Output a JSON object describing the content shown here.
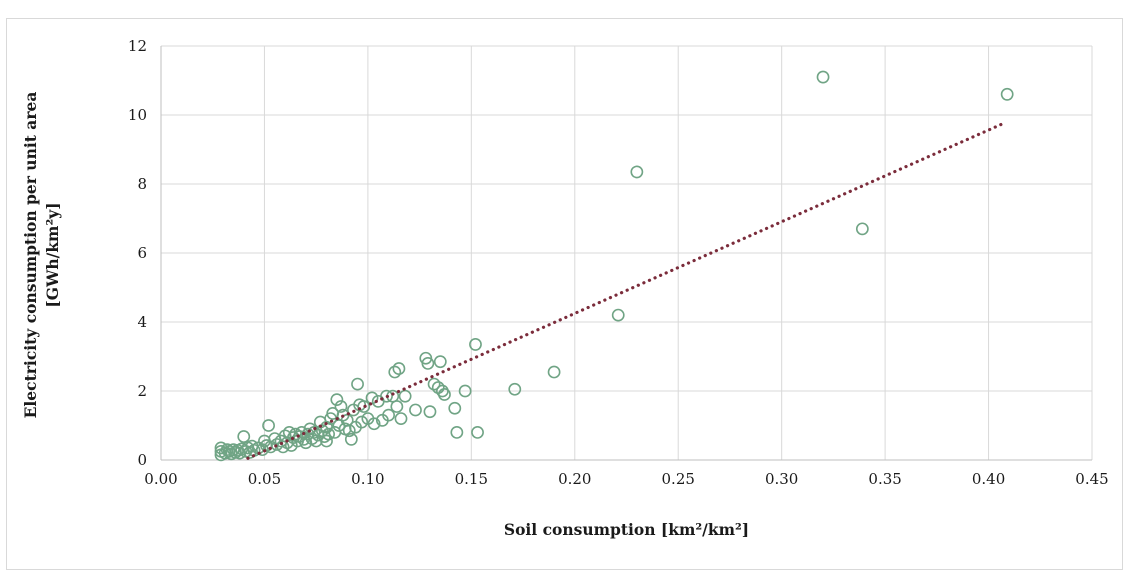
{
  "chart_data": {
    "type": "scatter",
    "xlabel": "Soil consumption [km²/km²]",
    "ylabel_lines": [
      "Electricity consumption per unit area",
      "[GWh/km²y]"
    ],
    "xlim": [
      0,
      0.45
    ],
    "ylim": [
      0,
      12
    ],
    "x_ticks": [
      "0.00",
      "0.05",
      "0.10",
      "0.15",
      "0.20",
      "0.25",
      "0.30",
      "0.35",
      "0.40",
      "0.45"
    ],
    "y_ticks": [
      "0",
      "2",
      "4",
      "6",
      "8",
      "10",
      "12"
    ],
    "grid": true,
    "legend": "none",
    "colors": {
      "points": "#70a485",
      "trendline": "#7b2c3b"
    },
    "trendline": {
      "style": "dotted",
      "x": [
        0.042,
        0.407
      ],
      "y": [
        0.05,
        9.75
      ]
    },
    "points": [
      {
        "x": 0.029,
        "y": 0.15
      },
      {
        "x": 0.029,
        "y": 0.25
      },
      {
        "x": 0.029,
        "y": 0.35
      },
      {
        "x": 0.031,
        "y": 0.2
      },
      {
        "x": 0.032,
        "y": 0.3
      },
      {
        "x": 0.033,
        "y": 0.25
      },
      {
        "x": 0.034,
        "y": 0.18
      },
      {
        "x": 0.035,
        "y": 0.3
      },
      {
        "x": 0.036,
        "y": 0.22
      },
      {
        "x": 0.037,
        "y": 0.28
      },
      {
        "x": 0.038,
        "y": 0.2
      },
      {
        "x": 0.039,
        "y": 0.32
      },
      {
        "x": 0.04,
        "y": 0.68
      },
      {
        "x": 0.041,
        "y": 0.25
      },
      {
        "x": 0.042,
        "y": 0.35
      },
      {
        "x": 0.043,
        "y": 0.22
      },
      {
        "x": 0.044,
        "y": 0.4
      },
      {
        "x": 0.045,
        "y": 0.28
      },
      {
        "x": 0.047,
        "y": 0.35
      },
      {
        "x": 0.049,
        "y": 0.3
      },
      {
        "x": 0.05,
        "y": 0.55
      },
      {
        "x": 0.051,
        "y": 0.42
      },
      {
        "x": 0.052,
        "y": 1.0
      },
      {
        "x": 0.053,
        "y": 0.38
      },
      {
        "x": 0.055,
        "y": 0.62
      },
      {
        "x": 0.056,
        "y": 0.45
      },
      {
        "x": 0.058,
        "y": 0.55
      },
      {
        "x": 0.059,
        "y": 0.38
      },
      {
        "x": 0.06,
        "y": 0.7
      },
      {
        "x": 0.061,
        "y": 0.5
      },
      {
        "x": 0.062,
        "y": 0.8
      },
      {
        "x": 0.063,
        "y": 0.42
      },
      {
        "x": 0.064,
        "y": 0.65
      },
      {
        "x": 0.065,
        "y": 0.75
      },
      {
        "x": 0.066,
        "y": 0.55
      },
      {
        "x": 0.067,
        "y": 0.68
      },
      {
        "x": 0.068,
        "y": 0.8
      },
      {
        "x": 0.069,
        "y": 0.6
      },
      {
        "x": 0.07,
        "y": 0.5
      },
      {
        "x": 0.071,
        "y": 0.75
      },
      {
        "x": 0.072,
        "y": 0.9
      },
      {
        "x": 0.073,
        "y": 0.62
      },
      {
        "x": 0.074,
        "y": 0.8
      },
      {
        "x": 0.075,
        "y": 0.55
      },
      {
        "x": 0.076,
        "y": 0.72
      },
      {
        "x": 0.077,
        "y": 1.1
      },
      {
        "x": 0.078,
        "y": 0.85
      },
      {
        "x": 0.079,
        "y": 0.68
      },
      {
        "x": 0.08,
        "y": 0.95
      },
      {
        "x": 0.08,
        "y": 0.55
      },
      {
        "x": 0.081,
        "y": 0.75
      },
      {
        "x": 0.082,
        "y": 1.2
      },
      {
        "x": 0.083,
        "y": 1.35
      },
      {
        "x": 0.084,
        "y": 0.8
      },
      {
        "x": 0.085,
        "y": 1.75
      },
      {
        "x": 0.086,
        "y": 1.0
      },
      {
        "x": 0.087,
        "y": 1.55
      },
      {
        "x": 0.088,
        "y": 1.3
      },
      {
        "x": 0.089,
        "y": 0.9
      },
      {
        "x": 0.09,
        "y": 1.15
      },
      {
        "x": 0.091,
        "y": 0.85
      },
      {
        "x": 0.092,
        "y": 0.6
      },
      {
        "x": 0.093,
        "y": 1.45
      },
      {
        "x": 0.094,
        "y": 0.95
      },
      {
        "x": 0.095,
        "y": 2.2
      },
      {
        "x": 0.096,
        "y": 1.6
      },
      {
        "x": 0.097,
        "y": 1.1
      },
      {
        "x": 0.098,
        "y": 1.55
      },
      {
        "x": 0.1,
        "y": 1.2
      },
      {
        "x": 0.102,
        "y": 1.8
      },
      {
        "x": 0.103,
        "y": 1.05
      },
      {
        "x": 0.105,
        "y": 1.7
      },
      {
        "x": 0.107,
        "y": 1.15
      },
      {
        "x": 0.109,
        "y": 1.85
      },
      {
        "x": 0.11,
        "y": 1.3
      },
      {
        "x": 0.112,
        "y": 1.85
      },
      {
        "x": 0.113,
        "y": 2.55
      },
      {
        "x": 0.114,
        "y": 1.55
      },
      {
        "x": 0.115,
        "y": 2.65
      },
      {
        "x": 0.116,
        "y": 1.2
      },
      {
        "x": 0.118,
        "y": 1.85
      },
      {
        "x": 0.123,
        "y": 1.45
      },
      {
        "x": 0.128,
        "y": 2.95
      },
      {
        "x": 0.129,
        "y": 2.8
      },
      {
        "x": 0.13,
        "y": 1.4
      },
      {
        "x": 0.132,
        "y": 2.2
      },
      {
        "x": 0.134,
        "y": 2.1
      },
      {
        "x": 0.135,
        "y": 2.85
      },
      {
        "x": 0.136,
        "y": 2.0
      },
      {
        "x": 0.137,
        "y": 1.9
      },
      {
        "x": 0.142,
        "y": 1.5
      },
      {
        "x": 0.143,
        "y": 0.8
      },
      {
        "x": 0.147,
        "y": 2.0
      },
      {
        "x": 0.152,
        "y": 3.35
      },
      {
        "x": 0.153,
        "y": 0.8
      },
      {
        "x": 0.171,
        "y": 2.05
      },
      {
        "x": 0.19,
        "y": 2.55
      },
      {
        "x": 0.221,
        "y": 4.2
      },
      {
        "x": 0.23,
        "y": 8.35
      },
      {
        "x": 0.32,
        "y": 11.1
      },
      {
        "x": 0.339,
        "y": 6.7
      },
      {
        "x": 0.409,
        "y": 10.6
      }
    ]
  }
}
